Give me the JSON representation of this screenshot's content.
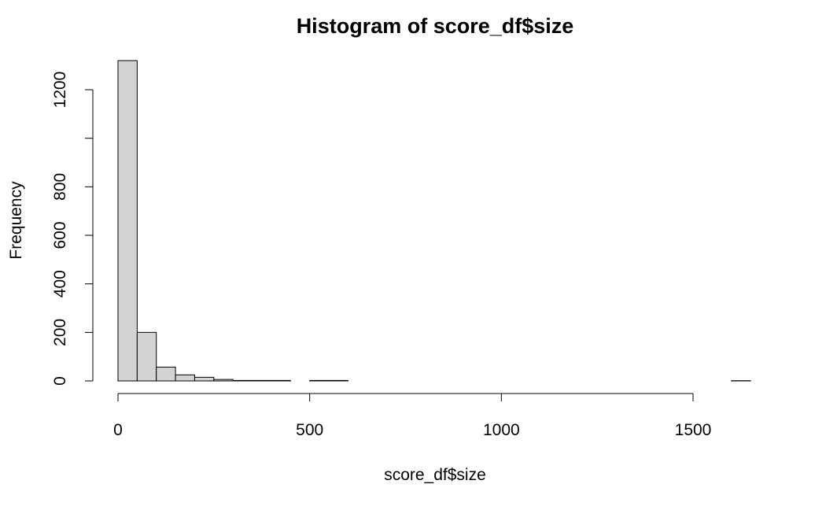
{
  "chart_data": {
    "type": "bar",
    "title": "Histogram of score_df$size",
    "xlabel": "score_df$size",
    "ylabel": "Frequency",
    "bin_width": 50,
    "bins": [
      {
        "start": 0,
        "end": 50,
        "count": 1320
      },
      {
        "start": 50,
        "end": 100,
        "count": 200
      },
      {
        "start": 100,
        "end": 150,
        "count": 57
      },
      {
        "start": 150,
        "end": 200,
        "count": 25
      },
      {
        "start": 200,
        "end": 250,
        "count": 15
      },
      {
        "start": 250,
        "end": 300,
        "count": 6
      },
      {
        "start": 300,
        "end": 350,
        "count": 2
      },
      {
        "start": 350,
        "end": 400,
        "count": 2
      },
      {
        "start": 400,
        "end": 450,
        "count": 2
      },
      {
        "start": 450,
        "end": 500,
        "count": 0
      },
      {
        "start": 500,
        "end": 550,
        "count": 2
      },
      {
        "start": 550,
        "end": 600,
        "count": 2
      },
      {
        "start": 600,
        "end": 650,
        "count": 0
      },
      {
        "start": 650,
        "end": 700,
        "count": 0
      },
      {
        "start": 700,
        "end": 750,
        "count": 0
      },
      {
        "start": 750,
        "end": 800,
        "count": 0
      },
      {
        "start": 800,
        "end": 850,
        "count": 0
      },
      {
        "start": 850,
        "end": 900,
        "count": 0
      },
      {
        "start": 900,
        "end": 950,
        "count": 0
      },
      {
        "start": 950,
        "end": 1000,
        "count": 0
      },
      {
        "start": 1000,
        "end": 1050,
        "count": 0
      },
      {
        "start": 1050,
        "end": 1100,
        "count": 0
      },
      {
        "start": 1100,
        "end": 1150,
        "count": 0
      },
      {
        "start": 1150,
        "end": 1200,
        "count": 0
      },
      {
        "start": 1200,
        "end": 1250,
        "count": 0
      },
      {
        "start": 1250,
        "end": 1300,
        "count": 0
      },
      {
        "start": 1300,
        "end": 1350,
        "count": 0
      },
      {
        "start": 1350,
        "end": 1400,
        "count": 0
      },
      {
        "start": 1400,
        "end": 1450,
        "count": 0
      },
      {
        "start": 1450,
        "end": 1500,
        "count": 0
      },
      {
        "start": 1500,
        "end": 1550,
        "count": 0
      },
      {
        "start": 1550,
        "end": 1600,
        "count": 0
      },
      {
        "start": 1600,
        "end": 1650,
        "count": 1
      }
    ],
    "xticks": [
      0,
      500,
      1000,
      1500
    ],
    "xtick_labels": [
      "0",
      "500",
      "1000",
      "1500"
    ],
    "yticks": [
      0,
      200,
      400,
      600,
      800,
      1000,
      1200
    ],
    "ytick_labels": [
      "0",
      "200",
      "400",
      "600",
      "800",
      "",
      "1200"
    ],
    "xlim": [
      0,
      1650
    ],
    "ylim": [
      0,
      1320
    ],
    "grid": false,
    "legend": "none",
    "colors": {
      "bar_fill": "#d3d3d3",
      "bar_stroke": "#000000"
    }
  }
}
